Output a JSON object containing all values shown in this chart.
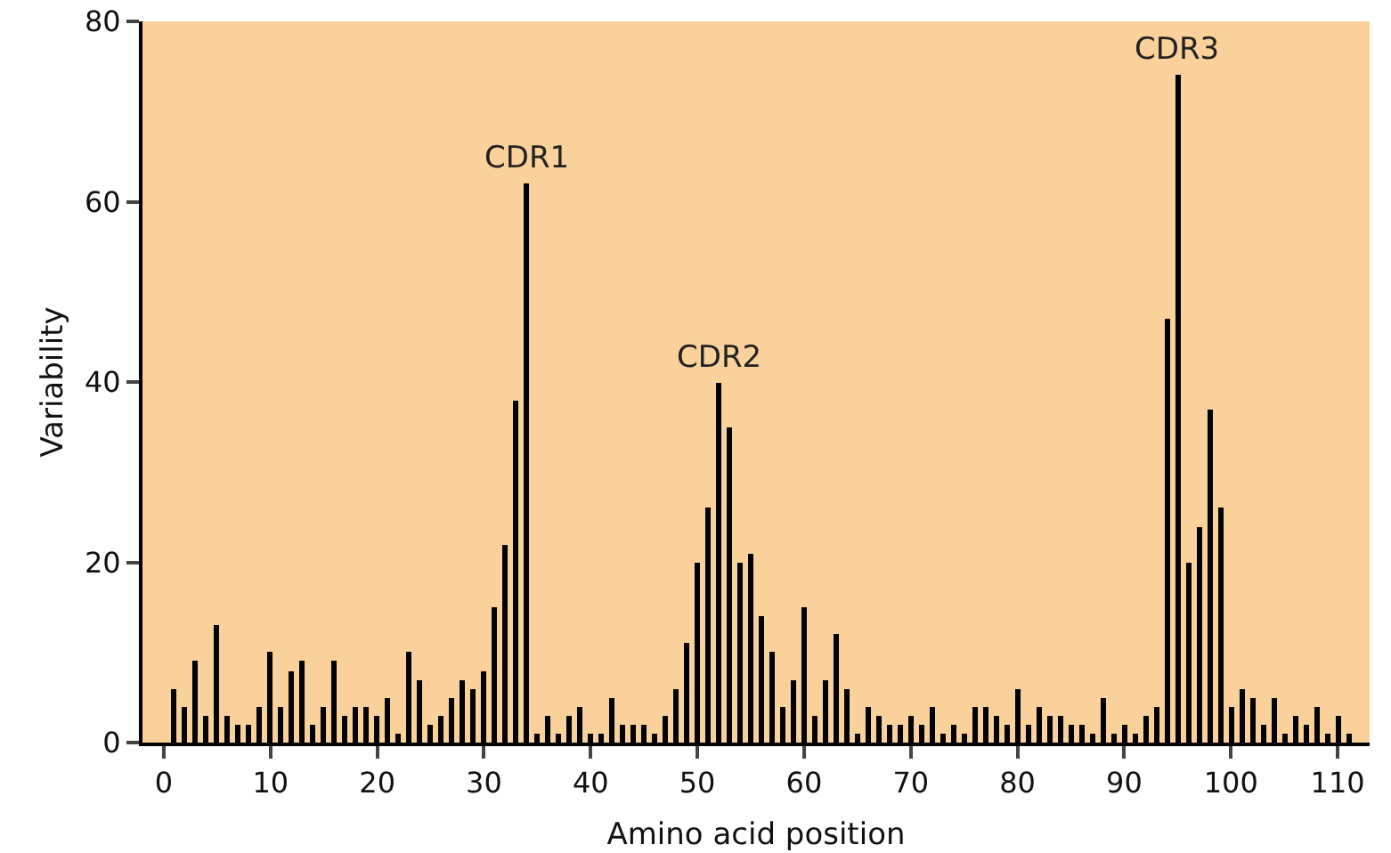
{
  "chart_data": {
    "type": "bar",
    "xlabel": "Amino acid position",
    "ylabel": "Variability",
    "x": [
      1,
      2,
      3,
      4,
      5,
      6,
      7,
      8,
      9,
      10,
      11,
      12,
      13,
      14,
      15,
      16,
      17,
      18,
      19,
      20,
      21,
      22,
      23,
      24,
      25,
      26,
      27,
      28,
      29,
      30,
      31,
      32,
      33,
      34,
      35,
      36,
      37,
      38,
      39,
      40,
      41,
      42,
      43,
      44,
      45,
      46,
      47,
      48,
      49,
      50,
      51,
      52,
      53,
      54,
      55,
      56,
      57,
      58,
      59,
      60,
      61,
      62,
      63,
      64,
      65,
      66,
      67,
      68,
      69,
      70,
      71,
      72,
      73,
      74,
      75,
      76,
      77,
      78,
      79,
      80,
      81,
      82,
      83,
      84,
      85,
      86,
      87,
      88,
      89,
      90,
      91,
      92,
      93,
      94,
      95,
      96,
      97,
      98,
      99,
      100,
      101,
      102,
      103,
      104,
      105,
      106,
      107,
      108,
      109,
      110,
      111
    ],
    "values": [
      6,
      4,
      9,
      3,
      13,
      3,
      2,
      2,
      4,
      10,
      4,
      8,
      9,
      2,
      4,
      9,
      3,
      4,
      4,
      3,
      5,
      1,
      10,
      7,
      2,
      3,
      5,
      7,
      6,
      8,
      15,
      22,
      38,
      62,
      1,
      3,
      1,
      3,
      4,
      1,
      1,
      5,
      2,
      2,
      2,
      1,
      3,
      6,
      11,
      20,
      26,
      40,
      35,
      20,
      21,
      14,
      10,
      4,
      7,
      15,
      3,
      7,
      12,
      6,
      1,
      4,
      3,
      2,
      2,
      3,
      2,
      4,
      1,
      2,
      1,
      4,
      4,
      3,
      2,
      6,
      2,
      4,
      3,
      3,
      2,
      2,
      1,
      5,
      1,
      2,
      1,
      3,
      4,
      47,
      74,
      20,
      24,
      37,
      26,
      4,
      6,
      5,
      2,
      5,
      1,
      3,
      2,
      4,
      1,
      3,
      1
    ],
    "color": "#000000",
    "xlim": [
      -2,
      113
    ],
    "xticks": [
      0,
      10,
      20,
      30,
      40,
      50,
      60,
      70,
      80,
      90,
      100,
      110
    ],
    "ylim": [
      0,
      80
    ],
    "yticks": [
      0,
      20,
      40,
      60,
      80
    ],
    "grid": false,
    "legend": false,
    "annotations": [
      {
        "text": "CDR1",
        "x": 34,
        "y": 62
      },
      {
        "text": "CDR2",
        "x": 52,
        "y": 40
      },
      {
        "text": "CDR3",
        "x": 95,
        "y": 74
      }
    ]
  }
}
